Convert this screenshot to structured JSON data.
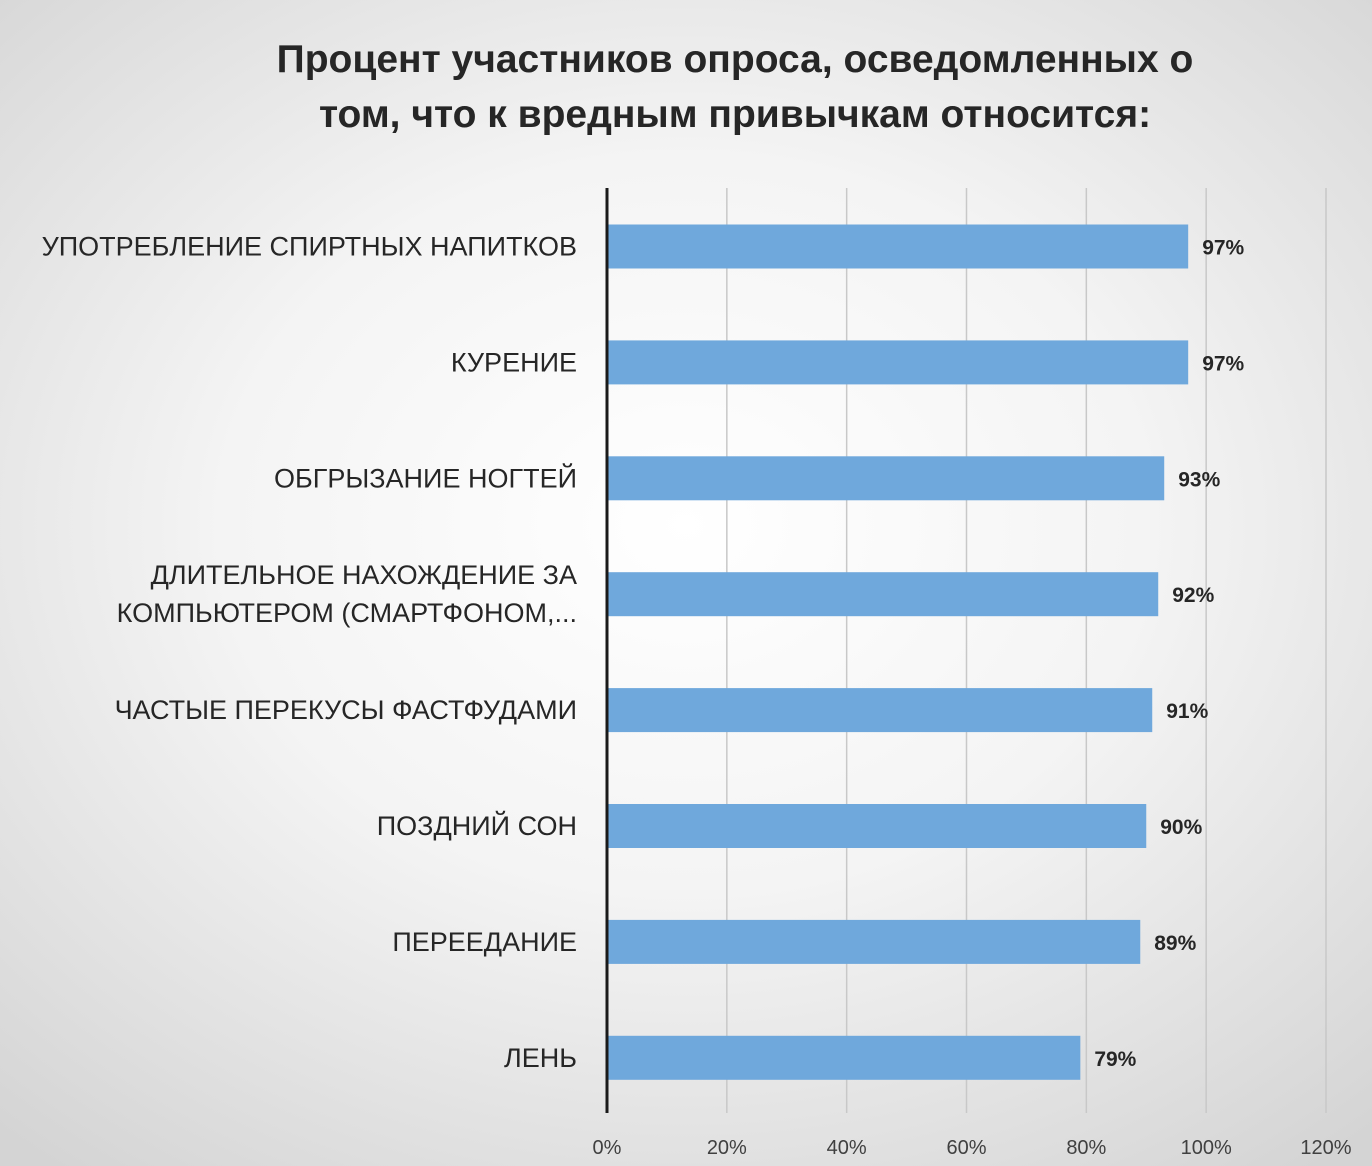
{
  "chart_data": {
    "type": "bar",
    "orientation": "horizontal",
    "title_lines": [
      "Процент участников опроса, осведомленных о",
      "том, что к вредным привычкам относится:"
    ],
    "categories": [
      [
        "УПОТРЕБЛЕНИЕ СПИРТНЫХ НАПИТКОВ"
      ],
      [
        "КУРЕНИЕ"
      ],
      [
        "ОБГРЫЗАНИЕ НОГТЕЙ"
      ],
      [
        "ДЛИТЕЛЬНОЕ НАХОЖДЕНИЕ ЗА",
        "КОМПЬЮТЕРОМ (СМАРТФОНОМ,..."
      ],
      [
        "ЧАСТЫЕ ПЕРЕКУСЫ ФАСТФУДАМИ"
      ],
      [
        "ПОЗДНИЙ СОН"
      ],
      [
        "ПЕРЕЕДАНИЕ"
      ],
      [
        "ЛЕНЬ"
      ]
    ],
    "values": [
      97,
      97,
      93,
      92,
      91,
      90,
      89,
      79
    ],
    "data_labels": [
      "97%",
      "97%",
      "93%",
      "92%",
      "91%",
      "90%",
      "89%",
      "79%"
    ],
    "x_ticks": [
      "0%",
      "20%",
      "40%",
      "60%",
      "80%",
      "100%",
      "120%"
    ],
    "xlim": [
      0,
      120
    ],
    "grid": "vertical",
    "bar_color": "#6fa8dc",
    "axis_color": "#1a1a1a",
    "grid_color": "#c8c8c8",
    "text_color": "#262626"
  }
}
